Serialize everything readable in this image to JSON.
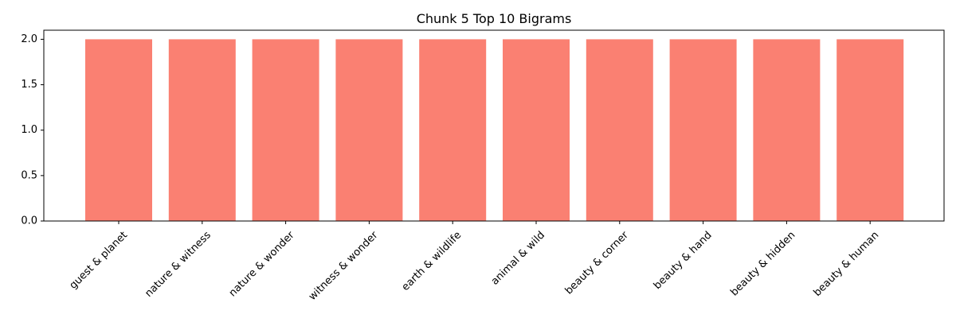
{
  "chart_data": {
    "type": "bar",
    "title": "Chunk 5 Top 10 Bigrams",
    "xlabel": "",
    "ylabel": "",
    "categories": [
      "guest & planet",
      "nature & witness",
      "nature & wonder",
      "witness & wonder",
      "earth & wildlife",
      "animal & wild",
      "beauty & corner",
      "beauty & hand",
      "beauty & hidden",
      "beauty & human"
    ],
    "values": [
      2,
      2,
      2,
      2,
      2,
      2,
      2,
      2,
      2,
      2
    ],
    "ylim": [
      0,
      2.1
    ],
    "yticks": [
      0.0,
      0.5,
      1.0,
      1.5,
      2.0
    ],
    "ytick_labels": [
      "0.0",
      "0.5",
      "1.0",
      "1.5",
      "2.0"
    ],
    "bar_color": "#fa8072",
    "grid": false,
    "x_tick_rotation": "45 degrees"
  }
}
